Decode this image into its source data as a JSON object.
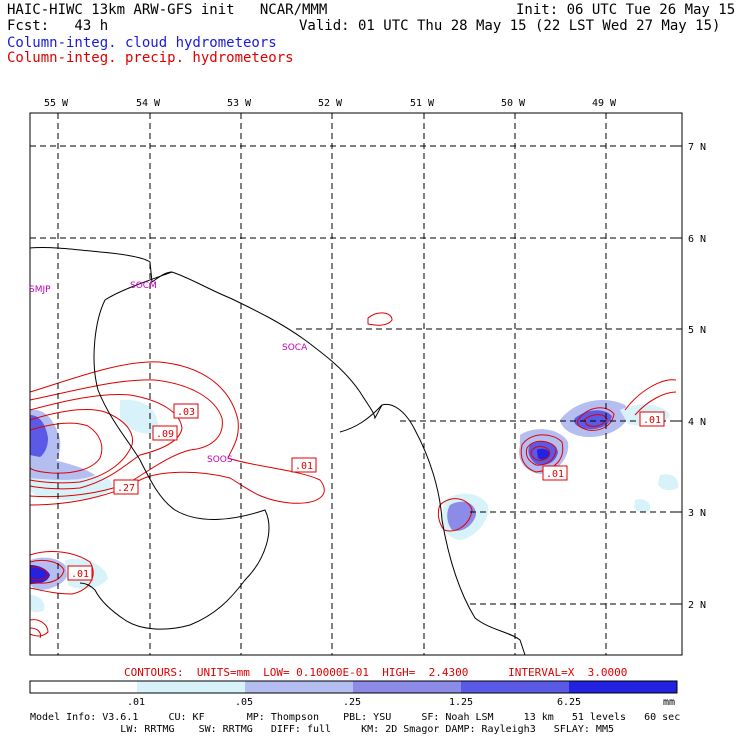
{
  "header": {
    "model_line": "HAIC-HIWC 13km ARW-GFS init   NCAR/MMM",
    "init_line": "Init: 06 UTC Tue 26 May 15",
    "fcst_line": "Fcst:   43 h",
    "valid_line": "Valid: 01 UTC Thu 28 May 15 (22 LST Wed 27 May 15)",
    "legend_cloud": "Column-integ. cloud hydrometeors",
    "legend_precip": "Column-integ. precip. hydrometeors",
    "colors": {
      "cloud": "#1a1adc",
      "precip": "#e00000",
      "text": "#000000"
    }
  },
  "map": {
    "lon_labels": [
      "55 W",
      "54 W",
      "53 W",
      "52 W",
      "51 W",
      "50 W",
      "49 W"
    ],
    "lat_labels": [
      "7 N",
      "6 N",
      "5 N",
      "4 N",
      "3 N",
      "2 N"
    ],
    "place_labels": [
      "SMJP",
      "SOCA",
      "SOOS",
      "SOCM"
    ],
    "contour_labels": [
      ".03",
      ".09",
      ".27",
      ".01",
      ".01",
      ".01",
      ".01"
    ],
    "place_label_color": "#c000c0"
  },
  "footer": {
    "contours_line": "CONTOURS:  UNITS=mm  LOW= 0.10000E-01  HIGH=  2.4300      INTERVAL=X  3.0000",
    "scale_ticks": [
      ".01",
      ".05",
      ".25",
      "1.25",
      "6.25"
    ],
    "scale_unit": "mm",
    "scale_colors": [
      "#ffffff",
      "#d8f2fa",
      "#b4bef0",
      "#8c8ce8",
      "#5a5ae6",
      "#2222e0"
    ],
    "model_info_1": "Model Info: V3.6.1     CU: KF       MP: Thompson    PBL: YSU     SF: Noah LSM     13 km   51 levels   60 sec",
    "model_info_2": "               LW: RRTMG    SW: RRTMG   DIFF: full     KM: 2D Smagor DAMP: Rayleigh3   SFLAY: MM5"
  }
}
